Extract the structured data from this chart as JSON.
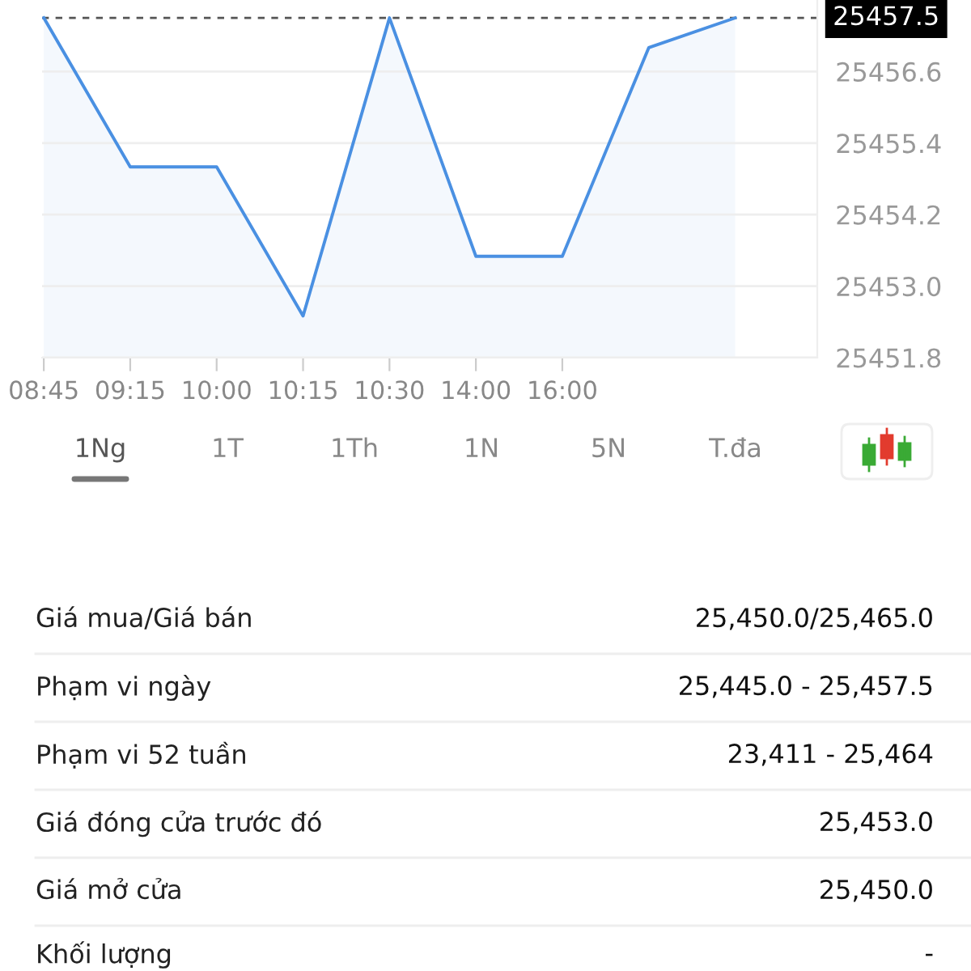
{
  "chart_data": [
    {
      "type": "area",
      "categories": [
        "08:45",
        "09:15",
        "10:00",
        "10:15",
        "10:30",
        "14:00",
        "16:00",
        null,
        null
      ],
      "values": [
        25457.5,
        25455.0,
        25455.0,
        25452.5,
        25457.5,
        25453.5,
        25453.5,
        25457.0,
        25457.5
      ],
      "color": "#4a90e2",
      "ylim": [
        25451.8,
        25457.8
      ],
      "yticks": [
        25451.8,
        {
          "value": 25453.0,
          "label": "25453.0"
        },
        25454.2,
        25455.4,
        25456.6
      ],
      "grid": "y",
      "ref_lines": [
        {
          "axis": "y",
          "value": 25457.5,
          "label": "25457.5",
          "color": "#555555",
          "line_style": "dashed"
        }
      ]
    },
    {
      "type": "other",
      "annotations": [
        "1Ng",
        "1T",
        "1Th",
        "1N",
        "5N",
        "T.đa"
      ],
      "categories": [
        "Giá mua/Giá bán",
        "Phạm vi ngày",
        "Phạm vi 52 tuần",
        "Giá đóng cửa trước đó",
        "Giá mở cửa",
        "Khối lượng"
      ],
      "value_labels": [
        "25,450.0/25,465.0",
        "25,445.0 - 25,457.5",
        "23,411 - 25,464",
        "25,453.0",
        "25,450.0",
        "-"
      ]
    }
  ]
}
